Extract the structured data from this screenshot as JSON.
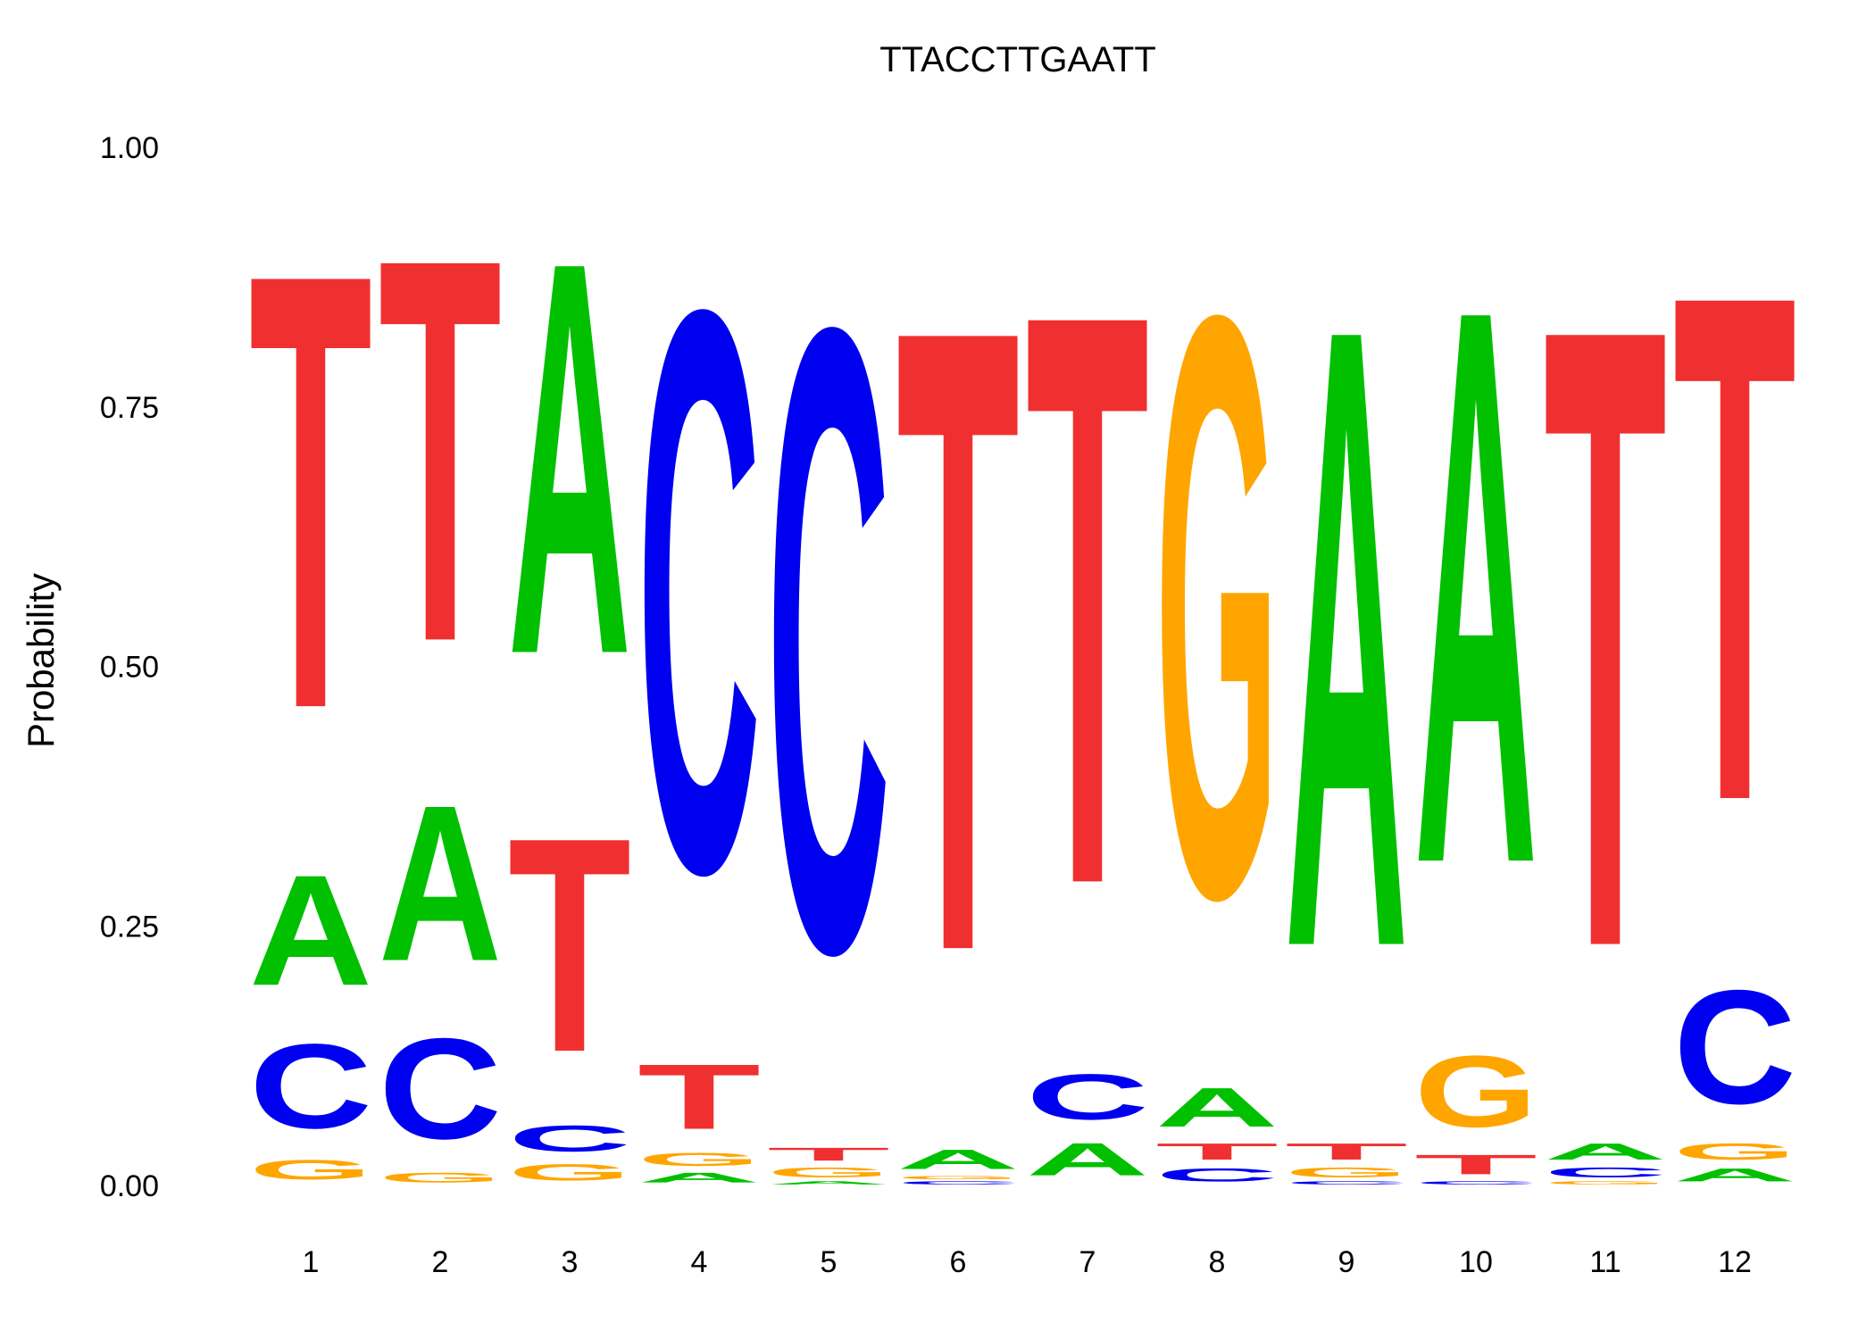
{
  "chart_data": {
    "type": "sequence-logo",
    "title": "TTACCTTGAATT",
    "ylabel": "Probability",
    "xlabel": "",
    "ylim": [
      0,
      1
    ],
    "yticks": [
      "0.00",
      "0.25",
      "0.50",
      "0.75",
      "1.00"
    ],
    "ytick_values": [
      0,
      0.25,
      0.5,
      0.75,
      1.0
    ],
    "categories": [
      "1",
      "2",
      "3",
      "4",
      "5",
      "6",
      "7",
      "8",
      "9",
      "10",
      "11",
      "12"
    ],
    "colors": {
      "A": "#00C000",
      "C": "#0000F0",
      "G": "#FFA500",
      "T": "#F03030"
    },
    "grid": false,
    "legend": "none",
    "positions": [
      [
        {
          "l": "G",
          "p": 0.03
        },
        {
          "l": "C",
          "p": 0.13
        },
        {
          "l": "A",
          "p": 0.17
        },
        {
          "l": "T",
          "p": 0.67
        }
      ],
      [
        {
          "l": "G",
          "p": 0.015
        },
        {
          "l": "C",
          "p": 0.155
        },
        {
          "l": "A",
          "p": 0.24
        },
        {
          "l": "T",
          "p": 0.59
        }
      ],
      [
        {
          "l": "G",
          "p": 0.025
        },
        {
          "l": "C",
          "p": 0.04
        },
        {
          "l": "T",
          "p": 0.33
        },
        {
          "l": "A",
          "p": 0.605
        }
      ],
      [
        {
          "l": "A",
          "p": 0.015
        },
        {
          "l": "G",
          "p": 0.02
        },
        {
          "l": "T",
          "p": 0.1
        },
        {
          "l": "C",
          "p": 0.865
        }
      ],
      [
        {
          "l": "A",
          "p": 0.005
        },
        {
          "l": "G",
          "p": 0.015
        },
        {
          "l": "T",
          "p": 0.02
        },
        {
          "l": "C",
          "p": 0.96
        }
      ],
      [
        {
          "l": "C",
          "p": 0.005
        },
        {
          "l": "G",
          "p": 0.005
        },
        {
          "l": "A",
          "p": 0.03
        },
        {
          "l": "T",
          "p": 0.96
        }
      ],
      [
        {
          "l": "A",
          "p": 0.05
        },
        {
          "l": "C",
          "p": 0.07
        },
        {
          "l": "T",
          "p": 0.88
        }
      ],
      [
        {
          "l": "C",
          "p": 0.02
        },
        {
          "l": "T",
          "p": 0.025
        },
        {
          "l": "A",
          "p": 0.06
        },
        {
          "l": "G",
          "p": 0.895
        }
      ],
      [
        {
          "l": "C",
          "p": 0.005
        },
        {
          "l": "G",
          "p": 0.015
        },
        {
          "l": "T",
          "p": 0.025
        },
        {
          "l": "A",
          "p": 0.955
        }
      ],
      [
        {
          "l": "C",
          "p": 0.005
        },
        {
          "l": "T",
          "p": 0.03
        },
        {
          "l": "G",
          "p": 0.11
        },
        {
          "l": "A",
          "p": 0.855
        }
      ],
      [
        {
          "l": "G",
          "p": 0.005
        },
        {
          "l": "C",
          "p": 0.015
        },
        {
          "l": "A",
          "p": 0.025
        },
        {
          "l": "T",
          "p": 0.955
        }
      ],
      [
        {
          "l": "A",
          "p": 0.02
        },
        {
          "l": "G",
          "p": 0.025
        },
        {
          "l": "C",
          "p": 0.175
        },
        {
          "l": "T",
          "p": 0.78
        }
      ]
    ]
  }
}
